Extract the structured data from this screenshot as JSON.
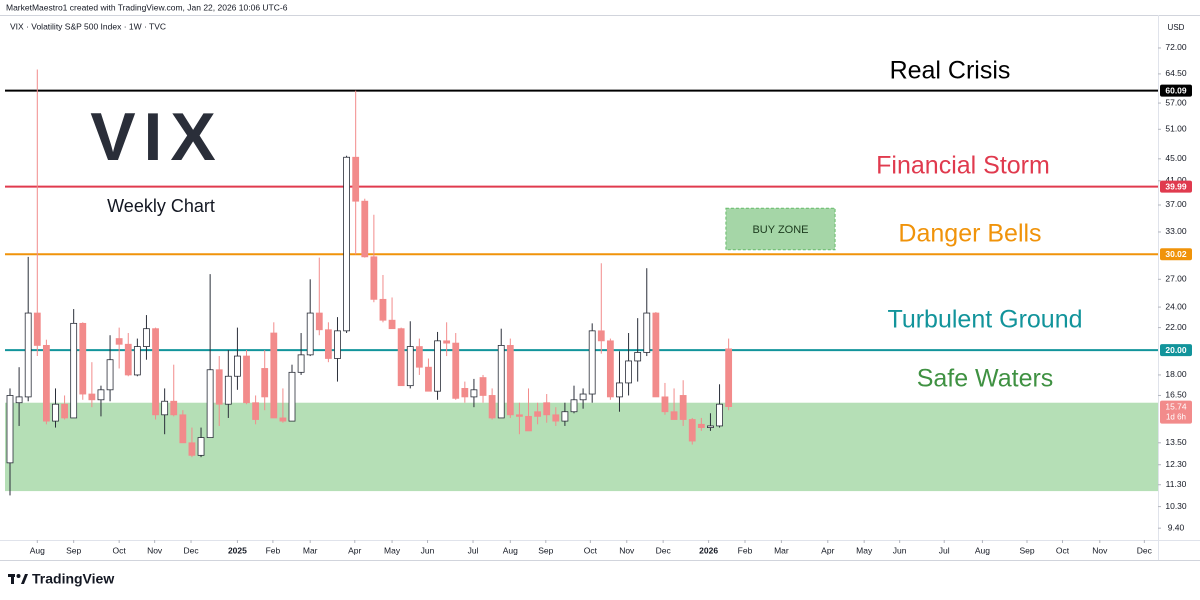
{
  "chart_data": {
    "type": "candlestick",
    "credit": "MarketMaestro1 created with TradingView.com, Jan 22, 2026 10:06 UTC-6",
    "title": "VIX · Volatility S&P 500 Index · 1W · TVC",
    "currency": "USD",
    "log_scale": true,
    "grid": false,
    "up_color": "#ffffff",
    "up_border": "#2a2e39",
    "down_color": "#f28b8b",
    "open": [
      12.4,
      16.0,
      16.4,
      23.4,
      20.4,
      14.8,
      15.9,
      15.0,
      22.4,
      16.6,
      16.2,
      16.9,
      21.0,
      20.5,
      18.0,
      20.3,
      21.9,
      15.2,
      16.1,
      15.2,
      13.5,
      12.8,
      13.8,
      18.4,
      15.9,
      17.9,
      19.5,
      16.0,
      18.5,
      21.5,
      15.0,
      14.8,
      18.2,
      19.6,
      23.4,
      21.8,
      19.3,
      21.7,
      45.3,
      37.6,
      29.7,
      24.8,
      22.7,
      21.9,
      17.2,
      20.3,
      18.6,
      16.8,
      20.8,
      20.6,
      17.0,
      16.4,
      17.8,
      16.5,
      15.0,
      20.4,
      15.2,
      15.1,
      15.4,
      16.0,
      15.2,
      14.8,
      15.4,
      16.2,
      16.6,
      21.7,
      20.8,
      16.4,
      17.4,
      19.1,
      19.8,
      23.4,
      16.4,
      15.4,
      16.5,
      14.9,
      14.6,
      14.4,
      14.5,
      20.1
    ],
    "high": [
      17.0,
      18.6,
      29.7,
      65.7,
      20.9,
      17.0,
      16.5,
      23.8,
      22.5,
      19.0,
      17.2,
      21.3,
      22.0,
      21.5,
      21.0,
      23.2,
      22.0,
      17.0,
      18.8,
      15.5,
      14.4,
      14.4,
      27.6,
      19.5,
      20.0,
      22.0,
      20.0,
      16.5,
      20.0,
      22.5,
      17.0,
      18.8,
      21.5,
      27.0,
      29.6,
      22.5,
      23.0,
      45.6,
      60.1,
      38.0,
      35.5,
      27.5,
      25.0,
      22.0,
      22.6,
      21.0,
      19.3,
      21.6,
      22.5,
      21.5,
      17.5,
      17.7,
      18.0,
      17.0,
      21.9,
      21.0,
      16.0,
      17.0,
      16.0,
      16.6,
      15.7,
      16.0,
      17.2,
      17.0,
      22.4,
      28.9,
      21.0,
      19.9,
      21.5,
      22.9,
      28.3,
      23.5,
      17.4,
      17.0,
      17.6,
      15.0,
      15.0,
      15.3,
      17.3,
      21.0
    ],
    "low": [
      10.8,
      14.5,
      16.1,
      19.5,
      14.6,
      14.4,
      14.9,
      15.0,
      16.2,
      15.7,
      15.1,
      16.1,
      18.5,
      17.9,
      17.9,
      19.2,
      14.9,
      14.0,
      15.1,
      13.5,
      12.7,
      12.7,
      13.8,
      14.5,
      15.0,
      16.9,
      15.9,
      14.6,
      15.5,
      15.0,
      14.7,
      14.8,
      18.0,
      19.5,
      21.3,
      19.0,
      17.5,
      21.5,
      30.0,
      29.6,
      24.5,
      22.5,
      21.9,
      17.2,
      17.0,
      18.0,
      16.8,
      16.2,
      19.5,
      16.2,
      16.0,
      15.7,
      16.0,
      14.9,
      15.0,
      15.0,
      14.0,
      14.2,
      14.6,
      14.7,
      14.5,
      14.5,
      15.3,
      15.6,
      16.0,
      19.7,
      16.2,
      15.4,
      16.5,
      17.5,
      19.5,
      16.4,
      15.2,
      14.9,
      14.5,
      13.4,
      14.2,
      14.2,
      14.4,
      15.5
    ],
    "close": [
      16.5,
      16.4,
      23.4,
      20.4,
      14.8,
      15.9,
      15.0,
      22.4,
      16.6,
      16.2,
      16.9,
      19.2,
      20.5,
      18.0,
      20.3,
      21.9,
      15.2,
      16.1,
      15.2,
      13.5,
      12.8,
      13.8,
      18.4,
      15.9,
      17.9,
      19.5,
      16.0,
      14.9,
      16.4,
      15.0,
      14.8,
      18.2,
      19.6,
      23.4,
      21.8,
      19.3,
      21.7,
      45.3,
      37.6,
      29.7,
      24.8,
      22.7,
      21.9,
      17.2,
      20.3,
      18.6,
      16.8,
      20.8,
      20.6,
      16.3,
      16.4,
      16.9,
      16.5,
      15.0,
      20.4,
      15.2,
      15.1,
      14.2,
      15.1,
      15.2,
      14.8,
      15.4,
      16.2,
      16.6,
      21.7,
      20.8,
      16.4,
      17.4,
      19.1,
      19.8,
      23.4,
      16.4,
      15.4,
      14.9,
      14.9,
      13.6,
      14.4,
      14.5,
      15.9,
      15.74
    ],
    "xlim": [
      -0.55,
      126.2
    ],
    "xticks": [
      {
        "value": 3.0,
        "label": "Aug"
      },
      {
        "value": 7.0,
        "label": "Sep"
      },
      {
        "value": 12.0,
        "label": "Oct"
      },
      {
        "value": 15.9,
        "label": "Nov"
      },
      {
        "value": 19.9,
        "label": "Dec"
      },
      {
        "value": 25.0,
        "label": "2025"
      },
      {
        "value": 28.9,
        "label": "Feb"
      },
      {
        "value": 33.0,
        "label": "Mar"
      },
      {
        "value": 37.9,
        "label": "Apr"
      },
      {
        "value": 42.0,
        "label": "May"
      },
      {
        "value": 45.9,
        "label": "Jun"
      },
      {
        "value": 50.9,
        "label": "Jul"
      },
      {
        "value": 55.0,
        "label": "Aug"
      },
      {
        "value": 58.9,
        "label": "Sep"
      },
      {
        "value": 63.8,
        "label": "Oct"
      },
      {
        "value": 67.8,
        "label": "Nov"
      },
      {
        "value": 71.8,
        "label": "Dec"
      },
      {
        "value": 76.8,
        "label": "2026"
      },
      {
        "value": 80.8,
        "label": "Feb"
      },
      {
        "value": 84.8,
        "label": "Mar"
      },
      {
        "value": 89.9,
        "label": "Apr"
      },
      {
        "value": 93.9,
        "label": "May"
      },
      {
        "value": 97.8,
        "label": "Jun"
      },
      {
        "value": 102.7,
        "label": "Jul"
      },
      {
        "value": 106.9,
        "label": "Aug"
      },
      {
        "value": 111.8,
        "label": "Sep"
      },
      {
        "value": 115.7,
        "label": "Oct"
      },
      {
        "value": 119.8,
        "label": "Nov"
      },
      {
        "value": 124.7,
        "label": "Dec"
      }
    ],
    "ylim": [
      8.94,
      82.8
    ],
    "yticks": [
      {
        "value": 72,
        "label": "72.00"
      },
      {
        "value": 64.5,
        "label": "64.50"
      },
      {
        "value": 57,
        "label": "57.00"
      },
      {
        "value": 51,
        "label": "51.00"
      },
      {
        "value": 45,
        "label": "45.00"
      },
      {
        "value": 41,
        "label": "41.00"
      },
      {
        "value": 37,
        "label": "37.00"
      },
      {
        "value": 33,
        "label": "33.00"
      },
      {
        "value": 27,
        "label": "27.00"
      },
      {
        "value": 24,
        "label": "24.00"
      },
      {
        "value": 22,
        "label": "22.00"
      },
      {
        "value": 18,
        "label": "18.00"
      },
      {
        "value": 16.5,
        "label": "16.50"
      },
      {
        "value": 13.5,
        "label": "13.50"
      },
      {
        "value": 12.3,
        "label": "12.30"
      },
      {
        "value": 11.3,
        "label": "11.30"
      },
      {
        "value": 10.3,
        "label": "10.30"
      },
      {
        "value": 9.4,
        "label": "9.40"
      }
    ],
    "levels": [
      {
        "value": 60.09,
        "value_label": "60.09",
        "color": "#000000"
      },
      {
        "value": 39.99,
        "value_label": "39.99",
        "color": "#e03a4e"
      },
      {
        "value": 30.02,
        "value_label": "30.02",
        "color": "#f0930a"
      },
      {
        "value": 20.0,
        "value_label": "20.00",
        "color": "#12949b"
      }
    ],
    "annotations": [
      {
        "text": "Real Crisis",
        "color": "#000000"
      },
      {
        "text": "Financial Storm",
        "color": "#e03a4e"
      },
      {
        "text": "Danger Bells",
        "color": "#f0930a"
      },
      {
        "text": "Turbulent Ground",
        "color": "#12949b"
      },
      {
        "text": "Safe Waters",
        "color": "#3f9142"
      }
    ],
    "logo_text": "VIX",
    "subtitle": "Weekly Chart",
    "zone": {
      "range": [
        11.0,
        16.0
      ],
      "color": "#b5dfb6"
    },
    "buy_zone": {
      "label": "BUY ZONE",
      "x": [
        78.7,
        90.7
      ],
      "y": [
        30.6,
        36.5
      ],
      "color": "#a5d6a7"
    },
    "last_price": 15.74,
    "countdown": "1d 6h"
  },
  "footer": {
    "brand": "TradingView"
  }
}
